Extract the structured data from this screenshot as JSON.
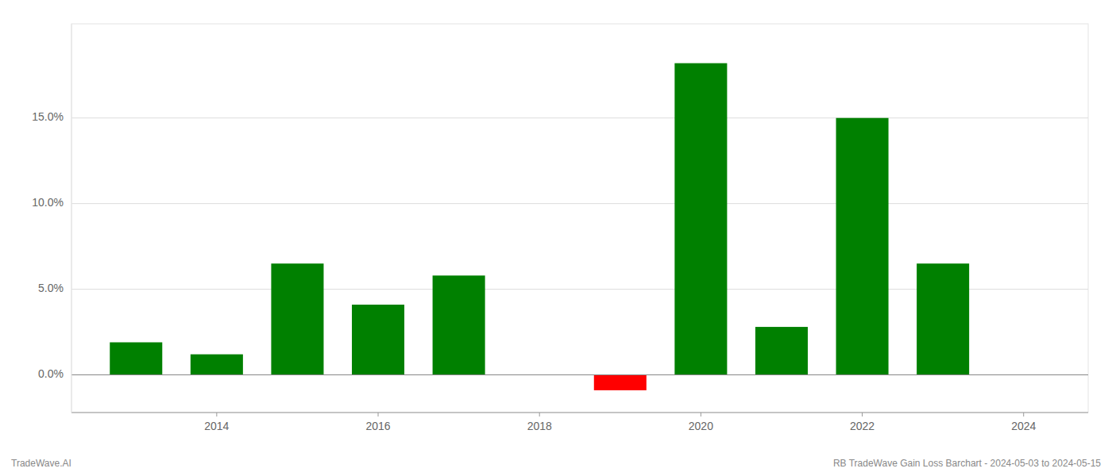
{
  "chart_data": {
    "type": "bar",
    "x": [
      2013,
      2014,
      2015,
      2016,
      2017,
      2019,
      2020,
      2021,
      2022,
      2023
    ],
    "values": [
      0.019,
      0.012,
      0.065,
      0.041,
      0.058,
      -0.009,
      0.182,
      0.028,
      0.15,
      0.065
    ],
    "colors": [
      "#008000",
      "#008000",
      "#008000",
      "#008000",
      "#008000",
      "#ff0000",
      "#008000",
      "#008000",
      "#008000",
      "#008000"
    ],
    "xlim": [
      2012.2,
      2024.8
    ],
    "xticks": [
      2014,
      2016,
      2018,
      2020,
      2022,
      2024
    ],
    "ylim": [
      -0.022,
      0.205
    ],
    "yticks": [
      {
        "value": 0.0,
        "label": "0.0%"
      },
      {
        "value": 0.05,
        "label": "5.0%"
      },
      {
        "value": 0.1,
        "label": "10.0%"
      },
      {
        "value": 0.15,
        "label": "15.0%"
      }
    ],
    "grid": true,
    "annotations": [
      "TradeWave.AI",
      "RB TradeWave Gain Loss Barchart - 2024-05-03 to 2024-05-15"
    ]
  }
}
